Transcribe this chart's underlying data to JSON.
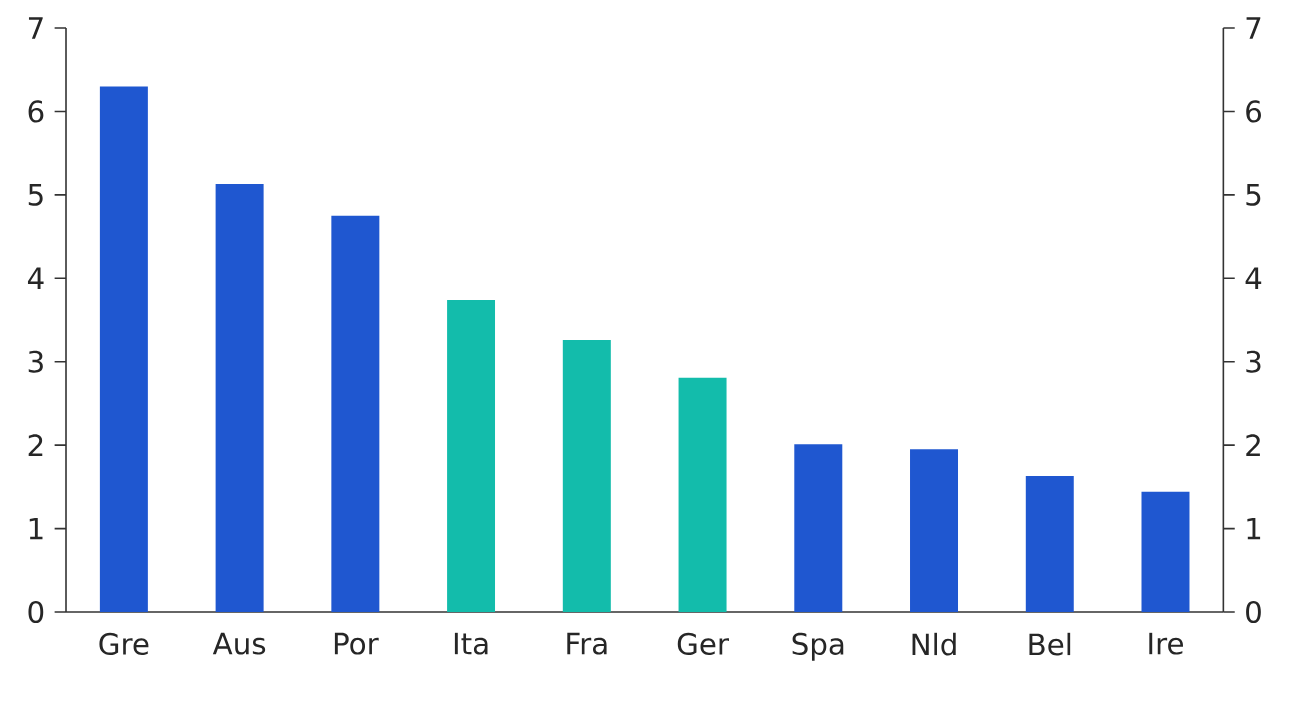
{
  "chart_data": {
    "type": "bar",
    "categories": [
      "Gre",
      "Aus",
      "Por",
      "Ita",
      "Fra",
      "Ger",
      "Spa",
      "Nld",
      "Bel",
      "Ire"
    ],
    "values": [
      6.3,
      5.13,
      4.75,
      3.74,
      3.26,
      2.81,
      2.01,
      1.95,
      1.63,
      1.44
    ],
    "colors": [
      "#1f57d0",
      "#1f57d0",
      "#1f57d0",
      "#13bcab",
      "#13bcab",
      "#13bcab",
      "#1f57d0",
      "#1f57d0",
      "#1f57d0",
      "#1f57d0"
    ],
    "ylim": [
      0,
      7
    ],
    "yticks": [
      0,
      1,
      2,
      3,
      4,
      5,
      6,
      7
    ],
    "y2lim": [
      0,
      7
    ],
    "y2ticks": [
      0,
      1,
      2,
      3,
      4,
      5,
      6,
      7
    ]
  }
}
